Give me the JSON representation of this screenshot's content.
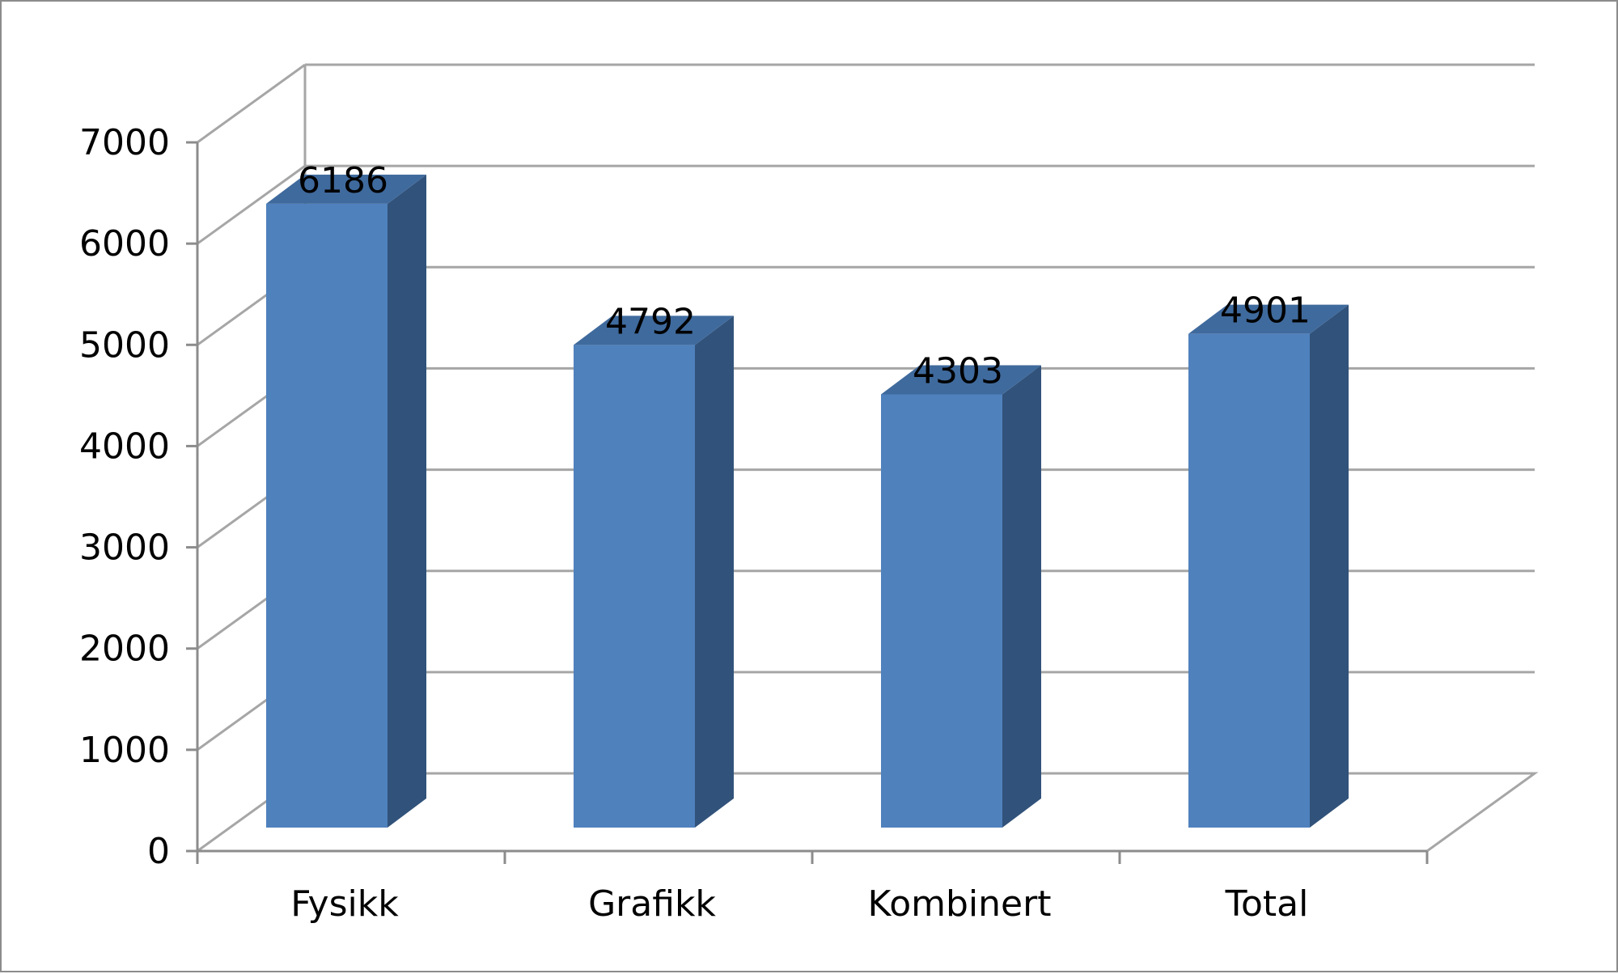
{
  "chart_data": {
    "type": "bar",
    "categories": [
      "Fysikk",
      "Grafikk",
      "Kombinert",
      "Total"
    ],
    "values": [
      6186,
      4792,
      4303,
      4901
    ],
    "y_ticks": [
      "0",
      "1000",
      "2000",
      "3000",
      "4000",
      "5000",
      "6000",
      "7000"
    ],
    "data_labels": [
      "6186",
      "4792",
      "4303",
      "4901"
    ],
    "ylim": [
      0,
      7000
    ],
    "grid": true,
    "legend": false,
    "style": "3d-column",
    "colors": {
      "bar_front": "#4f81bd",
      "bar_side": "#31527a",
      "bar_top": "#3f6a9d",
      "gridline": "#a6a6a6",
      "axis": "#8c8c8c"
    }
  }
}
